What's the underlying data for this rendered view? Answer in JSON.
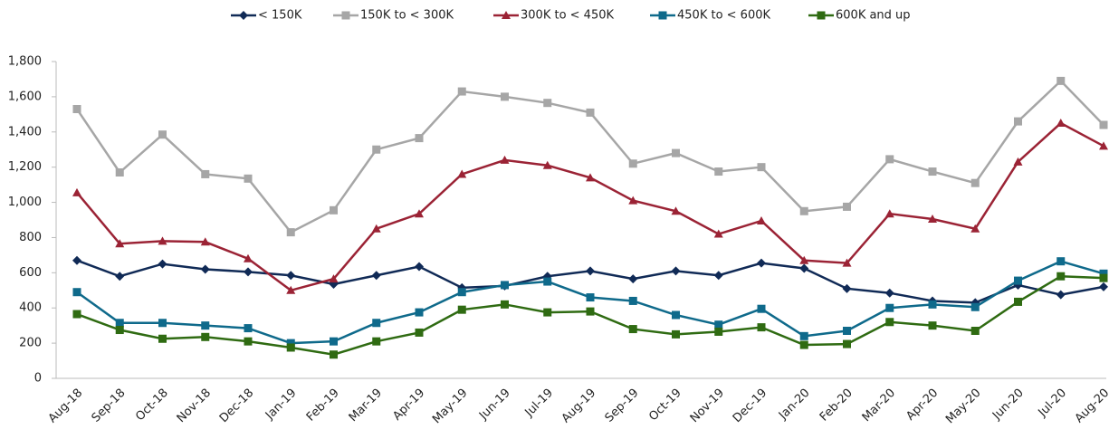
{
  "chart_data": {
    "type": "line",
    "categories": [
      "Aug-18",
      "Sep-18",
      "Oct-18",
      "Nov-18",
      "Dec-18",
      "Jan-19",
      "Feb-19",
      "Mar-19",
      "Apr-19",
      "May-19",
      "Jun-19",
      "Jul-19",
      "Aug-19",
      "Sep-19",
      "Oct-19",
      "Nov-19",
      "Dec-19",
      "Jan-20",
      "Feb-20",
      "Mar-20",
      "Apr-20",
      "May-20",
      "Jun-20",
      "Jul-20",
      "Aug-20"
    ],
    "series": [
      {
        "name": "< 150K",
        "color": "#102a56",
        "marker": "diamond",
        "values": [
          670,
          580,
          650,
          620,
          605,
          585,
          535,
          585,
          635,
          515,
          525,
          580,
          610,
          565,
          610,
          585,
          655,
          625,
          510,
          485,
          440,
          430,
          530,
          475,
          520
        ]
      },
      {
        "name": "150K to < 300K",
        "color": "#a6a6a6",
        "marker": "square",
        "values": [
          1530,
          1170,
          1385,
          1160,
          1135,
          830,
          955,
          1300,
          1365,
          1630,
          1600,
          1565,
          1510,
          1220,
          1280,
          1175,
          1200,
          950,
          975,
          1245,
          1175,
          1110,
          1460,
          1690,
          1440
        ]
      },
      {
        "name": "300K to < 450K",
        "color": "#9b2335",
        "marker": "triangle",
        "values": [
          1055,
          765,
          780,
          775,
          680,
          500,
          565,
          850,
          935,
          1160,
          1240,
          1210,
          1140,
          1010,
          950,
          820,
          895,
          670,
          655,
          935,
          905,
          850,
          1230,
          1450,
          1320
        ]
      },
      {
        "name": "450K to < 600K",
        "color": "#0f6a8b",
        "marker": "square",
        "values": [
          490,
          315,
          315,
          300,
          285,
          200,
          210,
          315,
          375,
          490,
          530,
          550,
          460,
          440,
          360,
          305,
          395,
          240,
          270,
          400,
          420,
          405,
          555,
          665,
          595
        ]
      },
      {
        "name": "600K and up",
        "color": "#2f6b12",
        "marker": "square",
        "values": [
          365,
          275,
          225,
          235,
          210,
          175,
          135,
          210,
          260,
          390,
          420,
          375,
          380,
          280,
          250,
          265,
          290,
          190,
          195,
          320,
          300,
          270,
          435,
          580,
          570
        ]
      }
    ],
    "ylim": [
      0,
      1800
    ],
    "yticks": [
      0,
      200,
      400,
      600,
      800,
      {
        "value": 1000,
        "label": "1,000"
      },
      {
        "value": 1200,
        "label": "1,200"
      },
      {
        "value": 1400,
        "label": "1,400"
      },
      {
        "value": 1600,
        "label": "1,600"
      },
      {
        "value": 1800,
        "label": "1,800"
      }
    ],
    "legend": "top"
  }
}
